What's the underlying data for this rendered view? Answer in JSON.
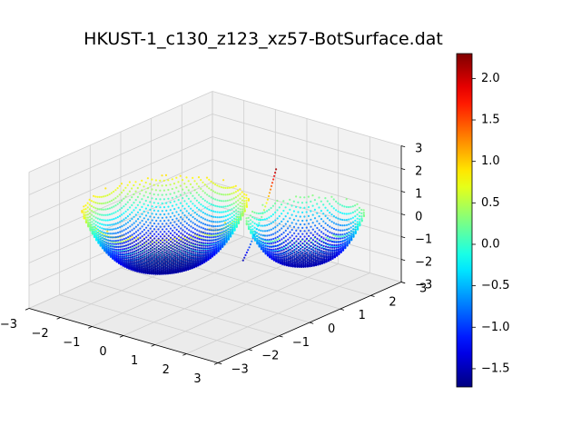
{
  "chart_data": {
    "type": "scatter",
    "projection": "3d",
    "title": "HKUST-1_c130_z123_xz57-BotSurface.dat",
    "xlabel": "",
    "ylabel": "",
    "zlabel": "",
    "xlim": [
      -3,
      3
    ],
    "ylim": [
      -3,
      3
    ],
    "zlim": [
      -3,
      3
    ],
    "x_ticks": [
      "−3",
      "−2",
      "−1",
      "0",
      "1",
      "2",
      "3"
    ],
    "y_ticks": [
      "−3",
      "−2",
      "−1",
      "0",
      "1",
      "2",
      "3"
    ],
    "z_ticks": [
      "−3",
      "−2",
      "−1",
      "0",
      "1",
      "2",
      "3"
    ],
    "grid": true,
    "colormap": "jet",
    "color_variable": "z",
    "color_range": [
      -1.72,
      2.3
    ],
    "colorbar_ticks": [
      "−1.5",
      "−1.0",
      "−0.5",
      "0.0",
      "0.5",
      "1.0",
      "1.5",
      "2.0"
    ],
    "colorbar_tick_values": [
      -1.5,
      -1.0,
      -0.5,
      0.0,
      0.5,
      1.0,
      1.5,
      2.0
    ],
    "series": [
      {
        "shape": "bowl-surface",
        "center": [
          -1.0,
          -0.6
        ],
        "radius": 1.9,
        "z_range": [
          -1.7,
          0.9
        ]
      },
      {
        "shape": "bowl-surface",
        "center": [
          1.6,
          1.3
        ],
        "radius": 1.35,
        "z_range": [
          -1.6,
          0.3
        ]
      },
      {
        "shape": "curve",
        "points": [
          [
            0.5,
            0.4,
            -1.5
          ],
          [
            0.55,
            0.55,
            -1.0
          ],
          [
            0.6,
            0.7,
            -0.4
          ],
          [
            0.65,
            0.85,
            0.2
          ],
          [
            0.7,
            1.0,
            0.9
          ],
          [
            0.75,
            1.1,
            1.6
          ],
          [
            0.8,
            1.2,
            2.3
          ]
        ]
      }
    ]
  }
}
